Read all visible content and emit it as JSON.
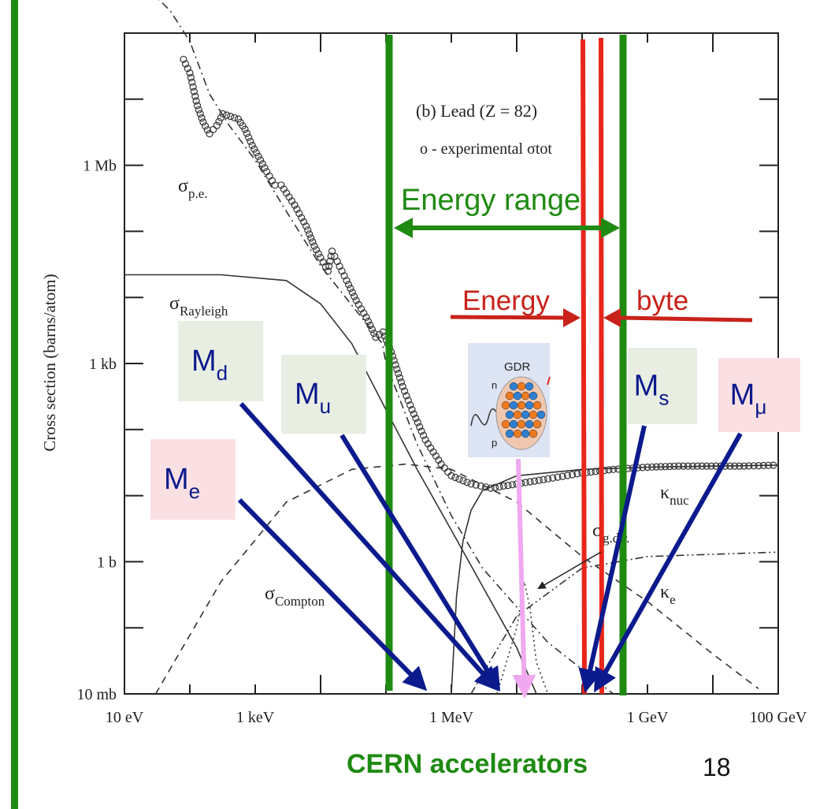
{
  "chart_data": {
    "type": "line",
    "title": "(b) Lead (Z = 82)",
    "legend": "o  - experimental σtot",
    "xlabel": "",
    "ylabel": "Cross section  (barns/atom)",
    "x_scale": "log",
    "y_scale": "log",
    "xlim_eV": [
      10,
      100000000000
    ],
    "ylim_barns": [
      0.01,
      100000000
    ],
    "x_ticks": [
      {
        "label": "10 eV",
        "value": 10
      },
      {
        "label": "1 keV",
        "value": 1000
      },
      {
        "label": "1 MeV",
        "value": 1000000
      },
      {
        "label": "1 GeV",
        "value": 1000000000
      },
      {
        "label": "100 GeV",
        "value": 100000000000
      }
    ],
    "y_ticks": [
      {
        "label": "10 mb",
        "value": 0.01
      },
      {
        "label": "1 b",
        "value": 1
      },
      {
        "label": "1 kb",
        "value": 1000
      },
      {
        "label": "1 Mb",
        "value": 1000000
      }
    ],
    "curve_labels": [
      {
        "id": "pe",
        "main": "σ",
        "sub": "p.e."
      },
      {
        "id": "rayleigh",
        "main": "σ",
        "sub": "Rayleigh"
      },
      {
        "id": "compton",
        "main": "σ",
        "sub": "Compton"
      },
      {
        "id": "knuc",
        "main": "κ",
        "sub": "nuc"
      },
      {
        "id": "ke",
        "main": "κ",
        "sub": "e"
      },
      {
        "id": "gdr",
        "main": "σ",
        "sub": "g.d.r."
      }
    ],
    "experimental_sigma_tot": [
      [
        80,
        40000000
      ],
      [
        100,
        25000000
      ],
      [
        130,
        8000000
      ],
      [
        160,
        4500000
      ],
      [
        200,
        3000000
      ],
      [
        260,
        4000000
      ],
      [
        320,
        6000000
      ],
      [
        420,
        5500000
      ],
      [
        550,
        5000000
      ],
      [
        700,
        3500000
      ],
      [
        900,
        2000000
      ],
      [
        1200,
        1200000
      ],
      [
        1500,
        800000
      ],
      [
        2000,
        500000
      ],
      [
        2500,
        500000
      ],
      [
        3000,
        380000
      ],
      [
        4000,
        250000
      ],
      [
        6000,
        120000
      ],
      [
        8000,
        60000
      ],
      [
        10000,
        40000
      ],
      [
        13000,
        25000
      ],
      [
        15000,
        50000
      ],
      [
        18000,
        35000
      ],
      [
        25000,
        18000
      ],
      [
        35000,
        9000
      ],
      [
        50000,
        5000
      ],
      [
        70000,
        2500
      ],
      [
        90000,
        3000
      ],
      [
        120000,
        1500
      ],
      [
        180000,
        450
      ],
      [
        250000,
        200
      ],
      [
        400000,
        70
      ],
      [
        700000,
        30
      ],
      [
        1000000,
        20
      ],
      [
        2000000,
        15
      ],
      [
        4000000,
        13
      ],
      [
        10000000,
        15
      ],
      [
        30000000,
        18
      ],
      [
        100000000,
        22
      ],
      [
        300000000,
        25
      ],
      [
        1000000000,
        27
      ],
      [
        3000000000,
        28
      ],
      [
        30000000000,
        28
      ],
      [
        100000000000,
        29
      ]
    ],
    "series": [
      {
        "name": "σ p.e.",
        "style": "dash-dot",
        "points": [
          [
            10,
            1000000000.0
          ],
          [
            50,
            220000000.0
          ],
          [
            100,
            75000000.0
          ],
          [
            200,
            12000000.0
          ],
          [
            400,
            4000000.0
          ],
          [
            1000,
            1200000.0
          ],
          [
            3000,
            200000.0
          ],
          [
            10000,
            30000.0
          ],
          [
            88000,
            2000
          ],
          [
            100000,
            1000.0
          ],
          [
            300000,
            60
          ],
          [
            1000000.0,
            5
          ],
          [
            3000000.0,
            0.8
          ],
          [
            30000000.0,
            0.06
          ],
          [
            300000000.0,
            0.01
          ]
        ]
      },
      {
        "name": "σ Rayleigh",
        "style": "solid",
        "points": [
          [
            10,
            22000.0
          ],
          [
            300,
            22000.0
          ],
          [
            3000,
            18000.0
          ],
          [
            10000,
            8000.0
          ],
          [
            30000,
            2000.0
          ],
          [
            100000,
            200
          ],
          [
            300000,
            25
          ],
          [
            1000000.0,
            3
          ],
          [
            10000000.0,
            0.05
          ],
          [
            20000000.0,
            0.01
          ]
        ]
      },
      {
        "name": "σ Compton",
        "style": "dash",
        "points": [
          [
            30,
            0.01
          ],
          [
            300,
            0.5
          ],
          [
            3000,
            8
          ],
          [
            30000,
            25
          ],
          [
            200000,
            30
          ],
          [
            1000000.0,
            25
          ],
          [
            10000000.0,
            8
          ],
          [
            100000000.0,
            1.2
          ],
          [
            1000000000.0,
            0.25
          ],
          [
            10000000000.0,
            0.04
          ],
          [
            50000000000.0,
            0.012
          ]
        ]
      },
      {
        "name": "κ nuc",
        "style": "solid",
        "points": [
          [
            1000000.0,
            0.01
          ],
          [
            1200000.0,
            0.3
          ],
          [
            1500000.0,
            2
          ],
          [
            2000000.0,
            6
          ],
          [
            3000000.0,
            12
          ],
          [
            10000000.0,
            20
          ],
          [
            100000000.0,
            25
          ],
          [
            1000000000.0,
            27
          ],
          [
            100000000000.0,
            29
          ]
        ]
      },
      {
        "name": "κ e",
        "style": "dash-dot-dot",
        "points": [
          [
            2000000.0,
            0.01
          ],
          [
            3000000.0,
            0.02
          ],
          [
            10000000.0,
            0.15
          ],
          [
            100000000.0,
            0.8
          ],
          [
            1000000000.0,
            1.2
          ],
          [
            100000000000.0,
            1.4
          ]
        ]
      },
      {
        "name": "σ g.d.r.",
        "style": "dot",
        "points": [
          [
            5000000.0,
            0.01
          ],
          [
            10000000.0,
            0.1
          ],
          [
            13000000.0,
            0.5
          ],
          [
            16000000.0,
            0.2
          ],
          [
            20000000.0,
            0.03
          ],
          [
            30000000.0,
            0.01
          ]
        ]
      }
    ]
  },
  "overlay": {
    "energy_range_label": "Energy range",
    "energy_label": "Energy",
    "byte_label": "byte",
    "gdr_label": "GDR",
    "gdr_n": "n",
    "gdr_p": "p",
    "masses": [
      {
        "id": "md",
        "main": "M",
        "sub": "d",
        "bg": "#e9eee2"
      },
      {
        "id": "mu",
        "main": "M",
        "sub": "u",
        "bg": "#e9eee2"
      },
      {
        "id": "me",
        "main": "M",
        "sub": "e",
        "bg": "#fbe0e3"
      },
      {
        "id": "ms",
        "main": "M",
        "sub": "s",
        "bg": "#e9eee2"
      },
      {
        "id": "mmu",
        "main": "M",
        "sub": "μ",
        "bg": "#fbe0e3"
      }
    ]
  },
  "footer": {
    "caption": "CERN accelerators",
    "page_number": "18"
  },
  "colors": {
    "green": "#1f8a12",
    "red": "#e8261b",
    "dark_red": "#c8221a",
    "navy": "#0b1a8c",
    "pink": "#f0a8f0"
  }
}
